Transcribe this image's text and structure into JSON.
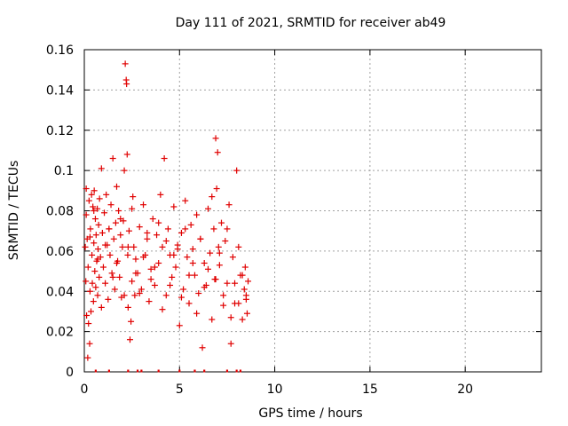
{
  "chart_data": {
    "type": "scatter",
    "title": "Day 111 of 2021, SRMTID for receiver ab49",
    "xlabel": "GPS time / hours",
    "ylabel": "SRMTID / TECUs",
    "xlim": [
      0,
      24
    ],
    "ylim": [
      0,
      0.16
    ],
    "x_ticks": [
      0,
      5,
      10,
      15,
      20
    ],
    "x_tick_labels": [
      "0",
      "5",
      "10",
      "15",
      "20"
    ],
    "y_ticks": [
      0,
      0.02,
      0.04,
      0.06,
      0.08,
      0.1,
      0.12,
      0.14,
      0.16
    ],
    "y_tick_labels": [
      "0",
      "0.02",
      "0.04",
      "0.06",
      "0.08",
      "0.1",
      "0.12",
      "0.14",
      "0.16"
    ],
    "grid": true,
    "marker": "plus",
    "color": "#e00000",
    "series": [
      {
        "x": [
          0.05,
          0.08,
          0.1,
          0.12,
          0.15,
          0.18,
          0.2,
          0.22,
          0.25,
          0.28,
          0.3,
          0.32,
          0.35,
          0.38,
          0.4,
          0.42,
          0.45,
          0.48,
          0.5,
          0.52,
          0.55,
          0.58,
          0.6,
          0.62,
          0.65,
          0.68,
          0.7,
          0.72,
          0.75,
          0.78,
          0.8,
          0.85,
          0.9,
          0.95,
          1.0,
          1.05,
          1.1,
          1.15,
          1.2,
          1.25,
          1.3,
          1.35,
          1.4,
          1.45,
          1.5,
          1.55,
          1.6,
          1.65,
          1.7,
          1.75,
          1.8,
          1.85,
          1.9,
          1.95,
          2.0,
          2.05,
          2.1,
          2.15,
          2.2,
          2.22,
          2.25,
          2.28,
          2.3,
          2.35,
          2.4,
          2.45,
          2.5,
          2.55,
          2.6,
          2.65,
          2.7,
          2.8,
          2.9,
          3.0,
          3.1,
          3.2,
          3.3,
          3.4,
          3.5,
          3.6,
          3.7,
          3.8,
          3.9,
          4.0,
          4.1,
          4.2,
          4.3,
          4.4,
          4.5,
          4.6,
          4.7,
          4.8,
          4.9,
          5.0,
          5.1,
          5.2,
          5.3,
          5.4,
          5.5,
          5.6,
          5.7,
          5.8,
          5.9,
          6.0,
          6.1,
          6.2,
          6.3,
          6.4,
          6.5,
          6.6,
          6.7,
          6.8,
          6.85,
          6.9,
          6.95,
          7.0,
          7.05,
          7.1,
          7.2,
          7.3,
          7.4,
          7.5,
          7.6,
          7.7,
          7.8,
          7.9,
          8.0,
          8.1,
          8.2,
          8.3,
          8.4,
          8.45,
          8.5,
          8.55,
          8.6
        ],
        "y": [
          0.062,
          0.045,
          0.078,
          0.028,
          0.066,
          0.007,
          0.052,
          0.024,
          0.085,
          0.014,
          0.04,
          0.071,
          0.03,
          0.088,
          0.058,
          0.044,
          0.082,
          0.035,
          0.064,
          0.09,
          0.05,
          0.076,
          0.042,
          0.068,
          0.055,
          0.081,
          0.038,
          0.061,
          0.073,
          0.047,
          0.086,
          0.057,
          0.101,
          0.069,
          0.052,
          0.079,
          0.044,
          0.088,
          0.063,
          0.036,
          0.071,
          0.058,
          0.083,
          0.049,
          0.106,
          0.066,
          0.041,
          0.074,
          0.092,
          0.055,
          0.08,
          0.047,
          0.068,
          0.037,
          0.062,
          0.075,
          0.1,
          0.153,
          0.145,
          0.143,
          0.108,
          0.058,
          0.032,
          0.07,
          0.016,
          0.025,
          0.045,
          0.087,
          0.062,
          0.038,
          0.056,
          0.049,
          0.072,
          0.041,
          0.083,
          0.058,
          0.066,
          0.035,
          0.051,
          0.076,
          0.043,
          0.068,
          0.054,
          0.088,
          0.062,
          0.106,
          0.038,
          0.071,
          0.058,
          0.047,
          0.082,
          0.052,
          0.063,
          0.023,
          0.069,
          0.041,
          0.085,
          0.057,
          0.034,
          0.073,
          0.061,
          0.048,
          0.078,
          0.039,
          0.066,
          0.012,
          0.054,
          0.043,
          0.081,
          0.059,
          0.026,
          0.071,
          0.046,
          0.116,
          0.091,
          0.109,
          0.062,
          0.053,
          0.074,
          0.038,
          0.065,
          0.044,
          0.083,
          0.014,
          0.057,
          0.034,
          0.1,
          0.062,
          0.048,
          0.026,
          0.041,
          0.052,
          0.036,
          0.029,
          0.045
        ]
      },
      {
        "x": [
          0.1,
          0.3,
          0.5,
          0.7,
          0.9,
          1.1,
          1.3,
          1.5,
          1.7,
          1.9,
          2.1,
          2.3,
          2.5,
          2.7,
          2.9,
          3.1,
          3.3,
          3.5,
          3.7,
          3.9,
          4.1,
          4.3,
          4.5,
          4.7,
          4.9,
          5.1,
          5.3,
          5.5,
          5.7,
          5.9,
          6.1,
          6.3,
          6.5,
          6.7,
          6.9,
          7.1,
          7.3,
          7.5,
          7.7,
          7.9,
          8.1,
          8.3,
          8.5
        ],
        "y": [
          0.091,
          0.067,
          0.08,
          0.056,
          0.032,
          0.063,
          0.071,
          0.047,
          0.054,
          0.076,
          0.038,
          0.062,
          0.081,
          0.049,
          0.039,
          0.057,
          0.069,
          0.046,
          0.052,
          0.074,
          0.031,
          0.065,
          0.043,
          0.058,
          0.061,
          0.037,
          0.071,
          0.048,
          0.054,
          0.029,
          0.066,
          0.042,
          0.051,
          0.087,
          0.046,
          0.059,
          0.033,
          0.071,
          0.027,
          0.044,
          0.034,
          0.048,
          0.038
        ]
      },
      {
        "x": [
          0.6,
          1.3,
          2.3,
          2.8,
          3.0,
          3.9,
          5.0,
          5.8,
          6.3,
          7.5,
          8.0,
          8.2
        ],
        "y": [
          0,
          0,
          0,
          0,
          0,
          0,
          0,
          0,
          0,
          0,
          0,
          0
        ]
      }
    ]
  }
}
